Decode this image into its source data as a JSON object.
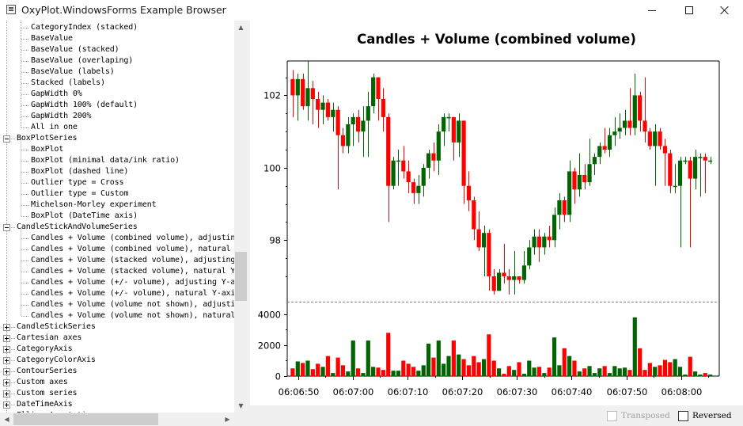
{
  "window": {
    "title": "OxyPlot.WindowsForms Example Browser"
  },
  "window_controls": {
    "minimize": "minimize",
    "maximize": "maximize",
    "close": "close"
  },
  "tree": [
    {
      "text": "CategoryIndex (stacked)",
      "level": 1
    },
    {
      "text": "BaseValue",
      "level": 1
    },
    {
      "text": "BaseValue (stacked)",
      "level": 1
    },
    {
      "text": "BaseValue (overlaping)",
      "level": 1
    },
    {
      "text": "BaseValue (labels)",
      "level": 1
    },
    {
      "text": "Stacked (labels)",
      "level": 1
    },
    {
      "text": "GapWidth 0%",
      "level": 1
    },
    {
      "text": "GapWidth 100% (default)",
      "level": 1
    },
    {
      "text": "GapWidth 200%",
      "level": 1
    },
    {
      "text": "All in one",
      "level": 1
    },
    {
      "text": "BoxPlotSeries",
      "level": 0,
      "expander": "minus"
    },
    {
      "text": "BoxPlot",
      "level": 1
    },
    {
      "text": "BoxPlot (minimal data/ink ratio)",
      "level": 1
    },
    {
      "text": "BoxPlot (dashed line)",
      "level": 1
    },
    {
      "text": "Outlier type = Cross",
      "level": 1
    },
    {
      "text": "Outlier type = Custom",
      "level": 1
    },
    {
      "text": "Michelson-Morley experiment",
      "level": 1
    },
    {
      "text": "BoxPlot (DateTime axis)",
      "level": 1
    },
    {
      "text": "CandleStickAndVolumeSeries",
      "level": 0,
      "expander": "minus"
    },
    {
      "text": "Candles + Volume (combined volume), adjusting Y-axis",
      "level": 1
    },
    {
      "text": "Candles + Volume (combined volume), natural Y-axis",
      "level": 1
    },
    {
      "text": "Candles + Volume (stacked volume), adjusting Y-axis",
      "level": 1
    },
    {
      "text": "Candles + Volume (stacked volume), natural Y-axis",
      "level": 1
    },
    {
      "text": "Candles + Volume (+/- volume), adjusting Y-axis",
      "level": 1
    },
    {
      "text": "Candles + Volume (+/- volume), natural Y-axis",
      "level": 1
    },
    {
      "text": "Candles + Volume (volume not shown), adjusting Y-axis",
      "level": 1
    },
    {
      "text": "Candles + Volume (volume not shown), natural Y-axis",
      "level": 1
    },
    {
      "text": "CandleStickSeries",
      "level": 0,
      "expander": "plus"
    },
    {
      "text": "Cartesian axes",
      "level": 0,
      "expander": "plus"
    },
    {
      "text": "CategoryAxis",
      "level": 0,
      "expander": "plus"
    },
    {
      "text": "CategoryColorAxis",
      "level": 0,
      "expander": "plus"
    },
    {
      "text": "ContourSeries",
      "level": 0,
      "expander": "plus"
    },
    {
      "text": "Custom axes",
      "level": 0,
      "expander": "plus"
    },
    {
      "text": "Custom series",
      "level": 0,
      "expander": "plus"
    },
    {
      "text": "DateTimeAxis",
      "level": 0,
      "expander": "plus"
    },
    {
      "text": "EllipseAnnotation",
      "level": 0,
      "expander": "plus"
    }
  ],
  "options": {
    "transposed": "Transposed",
    "reversed": "Reversed",
    "transposed_enabled": false,
    "reversed_checked": false
  },
  "colors": {
    "up": "#006400",
    "down": "#ff0000",
    "separator": "#808080"
  },
  "chart_data": {
    "type": "candlestick",
    "title": "Candles + Volume (combined volume)",
    "x_ticks": [
      "06:06:50",
      "06:07:00",
      "06:07:10",
      "06:07:20",
      "06:07:30",
      "06:07:40",
      "06:07:50",
      "06:08:00"
    ],
    "price_axis": {
      "ticks": [
        98,
        100,
        102
      ],
      "range": [
        96.3,
        102.95
      ]
    },
    "volume_axis": {
      "ticks": [
        0,
        2000,
        4000
      ],
      "range": [
        0,
        4200
      ]
    },
    "time_range_seconds": [
      "06:06:48",
      "06:08:07"
    ],
    "candles": [
      {
        "open": 102.45,
        "close": 102.0,
        "high": 102.7,
        "low": 101.4,
        "volume": 500
      },
      {
        "open": 102.0,
        "close": 102.45,
        "high": 102.6,
        "low": 101.3,
        "volume": 950
      },
      {
        "open": 102.45,
        "close": 101.7,
        "high": 102.6,
        "low": 101.6,
        "volume": 850
      },
      {
        "open": 101.7,
        "close": 102.2,
        "high": 102.95,
        "low": 101.3,
        "volume": 1000
      },
      {
        "open": 102.2,
        "close": 101.9,
        "high": 102.4,
        "low": 101.2,
        "volume": 450
      },
      {
        "open": 101.9,
        "close": 101.6,
        "high": 102.1,
        "low": 101.1,
        "volume": 800
      },
      {
        "open": 101.6,
        "close": 101.8,
        "high": 102.0,
        "low": 101.2,
        "volume": 600
      },
      {
        "open": 101.8,
        "close": 101.4,
        "high": 101.9,
        "low": 101.3,
        "volume": 1300
      },
      {
        "open": 101.4,
        "close": 101.6,
        "high": 101.8,
        "low": 101.0,
        "volume": 200
      },
      {
        "open": 101.6,
        "close": 100.9,
        "high": 101.7,
        "low": 99.4,
        "volume": 1200
      },
      {
        "open": 100.9,
        "close": 100.6,
        "high": 101.1,
        "low": 100.4,
        "volume": 700
      },
      {
        "open": 100.6,
        "close": 101.2,
        "high": 101.4,
        "low": 100.4,
        "volume": 300
      },
      {
        "open": 101.2,
        "close": 101.4,
        "high": 101.5,
        "low": 100.6,
        "volume": 2300
      },
      {
        "open": 101.4,
        "close": 101.0,
        "high": 101.6,
        "low": 100.7,
        "volume": 500
      },
      {
        "open": 101.0,
        "close": 101.3,
        "high": 101.7,
        "low": 100.3,
        "volume": 200
      },
      {
        "open": 101.3,
        "close": 101.7,
        "high": 102.1,
        "low": 100.3,
        "volume": 2300
      },
      {
        "open": 101.7,
        "close": 102.5,
        "high": 102.6,
        "low": 101.5,
        "volume": 600
      },
      {
        "open": 102.5,
        "close": 101.9,
        "high": 102.5,
        "low": 101.3,
        "volume": 550
      },
      {
        "open": 101.9,
        "close": 101.4,
        "high": 102.2,
        "low": 101.0,
        "volume": 400
      },
      {
        "open": 101.4,
        "close": 99.5,
        "high": 101.5,
        "low": 98.5,
        "volume": 2800
      },
      {
        "open": 99.5,
        "close": 100.2,
        "high": 100.3,
        "low": 99.4,
        "volume": 350
      },
      {
        "open": 100.2,
        "close": 100.2,
        "high": 100.5,
        "low": 99.5,
        "volume": 350
      },
      {
        "open": 100.2,
        "close": 99.9,
        "high": 100.6,
        "low": 99.7,
        "volume": 1000
      },
      {
        "open": 99.9,
        "close": 99.6,
        "high": 100.2,
        "low": 99.3,
        "volume": 800
      },
      {
        "open": 99.6,
        "close": 99.3,
        "high": 99.7,
        "low": 99.0,
        "volume": 600
      },
      {
        "open": 99.3,
        "close": 99.5,
        "high": 99.8,
        "low": 99.0,
        "volume": 350
      },
      {
        "open": 99.5,
        "close": 100.0,
        "high": 100.1,
        "low": 99.2,
        "volume": 700
      },
      {
        "open": 100.0,
        "close": 100.4,
        "high": 100.5,
        "low": 99.7,
        "volume": 2100
      },
      {
        "open": 100.4,
        "close": 100.2,
        "high": 100.7,
        "low": 99.9,
        "volume": 1200
      },
      {
        "open": 100.2,
        "close": 101.0,
        "high": 101.2,
        "low": 99.8,
        "volume": 2300
      },
      {
        "open": 101.0,
        "close": 101.4,
        "high": 101.5,
        "low": 100.6,
        "volume": 800
      },
      {
        "open": 101.4,
        "close": 101.4,
        "high": 101.5,
        "low": 101.0,
        "volume": 1300
      },
      {
        "open": 101.4,
        "close": 100.7,
        "high": 101.4,
        "low": 100.2,
        "volume": 2300
      },
      {
        "open": 100.7,
        "close": 101.3,
        "high": 101.5,
        "low": 100.3,
        "volume": 1400
      },
      {
        "open": 101.3,
        "close": 99.5,
        "high": 101.3,
        "low": 99.0,
        "volume": 1100
      },
      {
        "open": 99.5,
        "close": 99.1,
        "high": 99.9,
        "low": 98.8,
        "volume": 700
      },
      {
        "open": 99.1,
        "close": 98.3,
        "high": 99.2,
        "low": 98.0,
        "volume": 1300
      },
      {
        "open": 98.3,
        "close": 97.8,
        "high": 98.8,
        "low": 97.7,
        "volume": 900
      },
      {
        "open": 97.8,
        "close": 98.2,
        "high": 98.4,
        "low": 97.0,
        "volume": 1100
      },
      {
        "open": 98.2,
        "close": 97.0,
        "high": 98.3,
        "low": 96.6,
        "volume": 2700
      },
      {
        "open": 97.0,
        "close": 96.6,
        "high": 97.2,
        "low": 96.5,
        "volume": 1000
      },
      {
        "open": 96.6,
        "close": 97.1,
        "high": 97.2,
        "low": 96.6,
        "volume": 500
      },
      {
        "open": 97.1,
        "close": 97.0,
        "high": 97.9,
        "low": 96.8,
        "volume": 150
      },
      {
        "open": 97.0,
        "close": 96.9,
        "high": 97.2,
        "low": 96.5,
        "volume": 650
      },
      {
        "open": 96.9,
        "close": 97.0,
        "high": 97.7,
        "low": 96.5,
        "volume": 400
      },
      {
        "open": 97.0,
        "close": 96.9,
        "high": 97.0,
        "low": 96.8,
        "volume": 900
      },
      {
        "open": 96.9,
        "close": 97.3,
        "high": 97.7,
        "low": 96.8,
        "volume": 150
      },
      {
        "open": 97.3,
        "close": 97.8,
        "high": 98.0,
        "low": 97.2,
        "volume": 1000
      },
      {
        "open": 97.8,
        "close": 98.1,
        "high": 98.3,
        "low": 97.6,
        "volume": 550
      },
      {
        "open": 98.1,
        "close": 97.8,
        "high": 98.3,
        "low": 97.4,
        "volume": 600
      },
      {
        "open": 97.8,
        "close": 98.1,
        "high": 98.2,
        "low": 97.6,
        "volume": 200
      },
      {
        "open": 98.1,
        "close": 98.0,
        "high": 98.4,
        "low": 97.8,
        "volume": 550
      },
      {
        "open": 98.0,
        "close": 98.7,
        "high": 98.9,
        "low": 97.8,
        "volume": 2500
      },
      {
        "open": 98.7,
        "close": 99.1,
        "high": 99.3,
        "low": 98.3,
        "volume": 700
      },
      {
        "open": 99.1,
        "close": 98.7,
        "high": 99.2,
        "low": 98.5,
        "volume": 1800
      },
      {
        "open": 98.7,
        "close": 99.9,
        "high": 100.2,
        "low": 98.5,
        "volume": 1300
      },
      {
        "open": 99.9,
        "close": 99.4,
        "high": 100.0,
        "low": 99.0,
        "volume": 1000
      },
      {
        "open": 99.4,
        "close": 99.8,
        "high": 100.4,
        "low": 99.2,
        "volume": 300
      },
      {
        "open": 99.8,
        "close": 99.6,
        "high": 100.1,
        "low": 99.4,
        "volume": 500
      },
      {
        "open": 99.6,
        "close": 100.1,
        "high": 100.8,
        "low": 99.5,
        "volume": 650
      },
      {
        "open": 100.1,
        "close": 100.3,
        "high": 100.4,
        "low": 99.8,
        "volume": 200
      },
      {
        "open": 100.3,
        "close": 100.6,
        "high": 100.7,
        "low": 100.1,
        "volume": 500
      },
      {
        "open": 100.6,
        "close": 100.5,
        "high": 101.1,
        "low": 100.4,
        "volume": 650
      },
      {
        "open": 100.5,
        "close": 100.9,
        "high": 101.1,
        "low": 100.3,
        "volume": 200
      },
      {
        "open": 100.9,
        "close": 101.0,
        "high": 101.4,
        "low": 100.6,
        "volume": 650
      },
      {
        "open": 101.0,
        "close": 101.1,
        "high": 101.5,
        "low": 100.8,
        "volume": 500
      },
      {
        "open": 101.1,
        "close": 101.3,
        "high": 101.6,
        "low": 100.9,
        "volume": 550
      },
      {
        "open": 101.3,
        "close": 101.1,
        "high": 102.2,
        "low": 100.9,
        "volume": 400
      },
      {
        "open": 101.1,
        "close": 102.0,
        "high": 102.6,
        "low": 100.9,
        "volume": 3800
      },
      {
        "open": 102.0,
        "close": 101.3,
        "high": 102.1,
        "low": 101.0,
        "volume": 1800
      },
      {
        "open": 101.3,
        "close": 101.0,
        "high": 102.5,
        "low": 100.7,
        "volume": 400
      },
      {
        "open": 101.0,
        "close": 100.6,
        "high": 101.1,
        "low": 100.5,
        "volume": 850
      },
      {
        "open": 100.6,
        "close": 101.0,
        "high": 101.2,
        "low": 99.5,
        "volume": 600
      },
      {
        "open": 101.0,
        "close": 100.6,
        "high": 101.1,
        "low": 100.5,
        "volume": 700
      },
      {
        "open": 100.6,
        "close": 100.4,
        "high": 100.8,
        "low": 99.5,
        "volume": 1050
      },
      {
        "open": 100.4,
        "close": 99.5,
        "high": 100.5,
        "low": 99.3,
        "volume": 900
      },
      {
        "open": 99.5,
        "close": 99.5,
        "high": 100.1,
        "low": 99.3,
        "volume": 1100
      },
      {
        "open": 99.5,
        "close": 100.2,
        "high": 100.3,
        "low": 97.8,
        "volume": 600
      },
      {
        "open": 100.2,
        "close": 100.2,
        "high": 100.3,
        "low": 100.1,
        "volume": 100
      },
      {
        "open": 100.2,
        "close": 99.7,
        "high": 100.3,
        "low": 97.8,
        "volume": 1250
      },
      {
        "open": 99.7,
        "close": 100.3,
        "high": 100.5,
        "low": 99.4,
        "volume": 300
      },
      {
        "open": 100.3,
        "close": 100.3,
        "high": 100.4,
        "low": 99.2,
        "volume": 100
      },
      {
        "open": 100.3,
        "close": 100.2,
        "high": 100.4,
        "low": 99.3,
        "volume": 200
      },
      {
        "open": 100.2,
        "close": 100.2,
        "high": 100.3,
        "low": 100.1,
        "volume": 100
      }
    ]
  }
}
